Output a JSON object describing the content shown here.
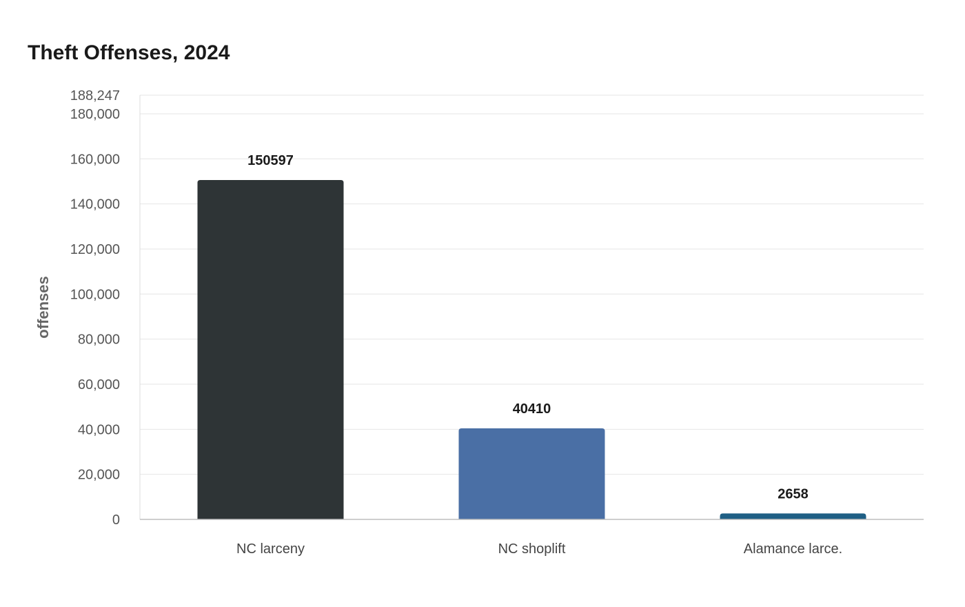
{
  "chart_data": {
    "type": "bar",
    "title": "Theft Offenses, 2024",
    "xlabel": "",
    "ylabel": "offenses",
    "categories": [
      "NC larceny",
      "NC shoplift",
      "Alamance larce."
    ],
    "values": [
      150597,
      40410,
      2658
    ],
    "colors": [
      "#2e3436",
      "#4a6fa5",
      "#1f5f85"
    ],
    "ylim": [
      0,
      188247
    ],
    "yticks": [
      0,
      20000,
      40000,
      60000,
      80000,
      100000,
      120000,
      140000,
      160000,
      180000,
      188247
    ],
    "ytick_labels": [
      "0",
      "20,000",
      "40,000",
      "60,000",
      "80,000",
      "100,000",
      "120,000",
      "140,000",
      "160,000",
      "180,000",
      "188,247"
    ],
    "value_labels": [
      "150597",
      "40410",
      "2658"
    ],
    "grid": true,
    "legend": "none"
  }
}
